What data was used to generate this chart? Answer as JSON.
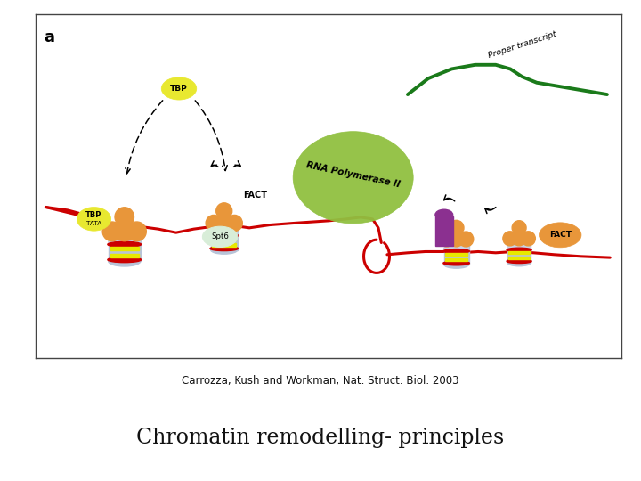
{
  "figure_width": 7.2,
  "figure_height": 5.4,
  "dpi": 100,
  "bg_color": "#ffffff",
  "box_edge_color": "#444444",
  "citation_text": "Carrozza, Kush and Workman, Nat. Struct. Biol. 2003",
  "title_text": "Chromatin remodelling- principles",
  "panel_label": "a",
  "citation_fontsize": 8.5,
  "title_fontsize": 17,
  "panel_label_fontsize": 13,
  "red_line_color": "#cc0000",
  "green_line_color": "#1a7a1a",
  "orange_color": "#e8963a",
  "yellow_color": "#f0f000",
  "green_blob_color": "#90c040",
  "nucleosome_body_color": "#b8c4d8",
  "nucleosome_red_color": "#cc0000",
  "nucleosome_yellow_color": "#e8e800",
  "tbp_color": "#e8e830",
  "spt6_color": "#d8edd8",
  "fact_color": "#e8963a",
  "purple_color": "#8b3090"
}
